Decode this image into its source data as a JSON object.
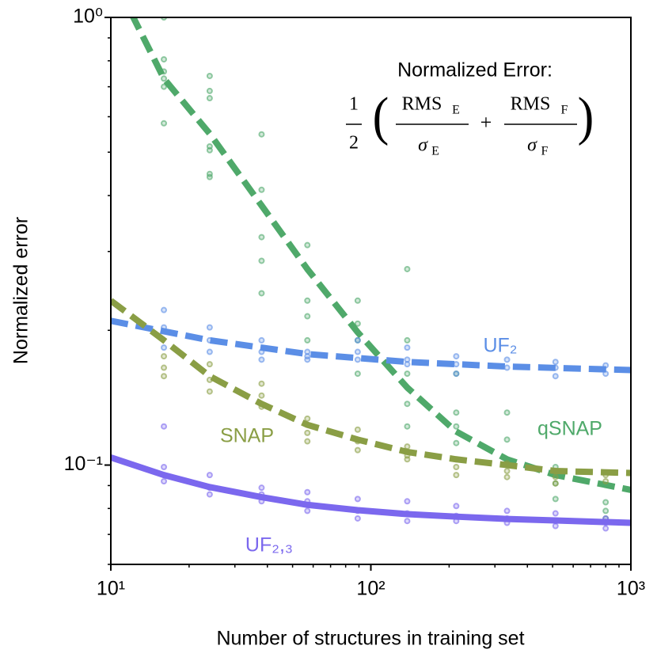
{
  "chart_data": {
    "type": "scatter",
    "xlabel": "Number of structures in training set",
    "ylabel": "Normalized error",
    "log_x": true,
    "log_y": true,
    "grid": false,
    "xlim": [
      10,
      1000
    ],
    "ylim": [
      0.06,
      1
    ],
    "xticks": [
      {
        "value": 10,
        "label": "10¹"
      },
      {
        "value": 100,
        "label": "10²"
      },
      {
        "value": 1000,
        "label": "10³"
      }
    ],
    "yticks": [
      {
        "value": 0.1,
        "label": "10⁻¹"
      },
      {
        "value": 1,
        "label": "10⁰"
      }
    ],
    "xminorticks": [
      20,
      30,
      40,
      50,
      60,
      70,
      80,
      90,
      200,
      300,
      400,
      500,
      600,
      700,
      800,
      900
    ],
    "yminorticks": [
      0.06,
      0.07,
      0.08,
      0.09,
      0.2,
      0.3,
      0.4,
      0.5,
      0.6,
      0.7,
      0.8,
      0.9
    ],
    "annotation": {
      "title": "Normalized Error:",
      "formula": {
        "half_num": "1",
        "half_den": "2",
        "open": "(",
        "close": ")",
        "plus": "+",
        "num1": "RMS",
        "num1_sub": "E",
        "den1": "σ",
        "den1_sub": "E",
        "num2": "RMS",
        "num2_sub": "F",
        "den2": "σ",
        "den2_sub": "F"
      }
    },
    "series": [
      {
        "name": "qSNAP",
        "color": "#4fa96a",
        "dashed": true,
        "line": {
          "x": [
            12,
            16,
            24,
            38,
            57,
            89,
            138,
            212,
            334,
            513,
            1000
          ],
          "values": [
            1.02,
            0.73,
            0.55,
            0.38,
            0.274,
            0.198,
            0.149,
            0.119,
            0.103,
            0.095,
            0.088
          ]
        },
        "points": {
          "x": [
            16,
            16,
            16,
            16,
            16,
            16,
            24,
            24,
            24,
            24,
            24,
            24,
            24,
            38,
            38,
            38,
            38,
            38,
            38,
            57,
            57,
            57,
            57,
            57,
            89,
            89,
            89,
            89,
            138,
            138,
            138,
            138,
            138,
            213,
            213,
            213,
            213,
            334,
            334,
            334,
            513,
            513,
            513,
            800,
            800,
            800
          ],
          "values": [
            1.0,
            0.806,
            0.757,
            0.73,
            0.7,
            0.58,
            0.74,
            0.685,
            0.66,
            0.515,
            0.505,
            0.447,
            0.44,
            0.548,
            0.412,
            0.38,
            0.323,
            0.286,
            0.242,
            0.31,
            0.274,
            0.233,
            0.215,
            0.19,
            0.233,
            0.207,
            0.19,
            0.16,
            0.274,
            0.19,
            0.16,
            0.137,
            0.122,
            0.16,
            0.131,
            0.122,
            0.112,
            0.131,
            0.114,
            0.103,
            0.099,
            0.091,
            0.084,
            0.0826,
            0.079,
            0.076
          ]
        }
      },
      {
        "name": "UF₂",
        "color": "#5b8ee6",
        "dashed": true,
        "line": {
          "x": [
            10,
            24,
            57,
            138,
            334,
            1000
          ],
          "values": [
            0.21,
            0.19,
            0.177,
            0.17,
            0.166,
            0.163
          ]
        },
        "points": {
          "x": [
            16,
            16,
            16,
            24,
            24,
            24,
            38,
            38,
            38,
            57,
            57,
            57,
            89,
            89,
            89,
            138,
            138,
            138,
            213,
            213,
            213,
            334,
            334,
            513,
            513,
            513,
            800,
            800
          ],
          "values": [
            0.222,
            0.203,
            0.183,
            0.203,
            0.19,
            0.179,
            0.19,
            0.179,
            0.172,
            0.179,
            0.175,
            0.172,
            0.19,
            0.179,
            0.172,
            0.183,
            0.172,
            0.168,
            0.175,
            0.168,
            0.16,
            0.172,
            0.165,
            0.17,
            0.165,
            0.158,
            0.167,
            0.16
          ]
        }
      },
      {
        "name": "SNAP",
        "color": "#8a9e45",
        "dashed": true,
        "line": {
          "x": [
            10,
            16,
            24,
            38,
            57,
            89,
            138,
            213,
            334,
            513,
            1000
          ],
          "values": [
            0.233,
            0.19,
            0.158,
            0.137,
            0.123,
            0.114,
            0.107,
            0.103,
            0.1,
            0.097,
            0.096
          ]
        },
        "points": {
          "x": [
            16,
            16,
            16,
            24,
            24,
            24,
            38,
            38,
            38,
            57,
            57,
            57,
            89,
            89,
            89,
            138,
            138,
            138,
            213,
            213,
            213,
            334,
            334,
            334,
            513,
            513,
            513,
            800,
            800
          ],
          "values": [
            0.175,
            0.165,
            0.158,
            0.168,
            0.155,
            0.146,
            0.152,
            0.143,
            0.135,
            0.127,
            0.118,
            0.113,
            0.12,
            0.113,
            0.108,
            0.11,
            0.105,
            0.103,
            0.103,
            0.099,
            0.095,
            0.101,
            0.097,
            0.094,
            0.097,
            0.094,
            0.091,
            0.095,
            0.092
          ]
        }
      },
      {
        "name": "UF₂,₃",
        "color": "#7b68ee",
        "dashed": false,
        "line": {
          "x": [
            10,
            16,
            24,
            38,
            57,
            89,
            138,
            213,
            334,
            513,
            1000
          ],
          "values": [
            0.104,
            0.095,
            0.0893,
            0.0848,
            0.0815,
            0.0793,
            0.0777,
            0.0767,
            0.0758,
            0.0752,
            0.0743
          ]
        },
        "points": {
          "x": [
            16,
            16,
            16,
            16,
            24,
            24,
            24,
            38,
            38,
            38,
            57,
            57,
            57,
            89,
            89,
            89,
            138,
            138,
            138,
            213,
            213,
            213,
            334,
            334,
            334,
            513,
            513,
            513,
            800,
            800,
            800
          ],
          "values": [
            0.122,
            0.099,
            0.095,
            0.092,
            0.095,
            0.089,
            0.086,
            0.089,
            0.086,
            0.083,
            0.087,
            0.083,
            0.079,
            0.084,
            0.079,
            0.076,
            0.083,
            0.078,
            0.075,
            0.081,
            0.077,
            0.075,
            0.079,
            0.076,
            0.0743,
            0.078,
            0.075,
            0.0731,
            0.076,
            0.0743,
            0.0722
          ]
        }
      }
    ]
  }
}
